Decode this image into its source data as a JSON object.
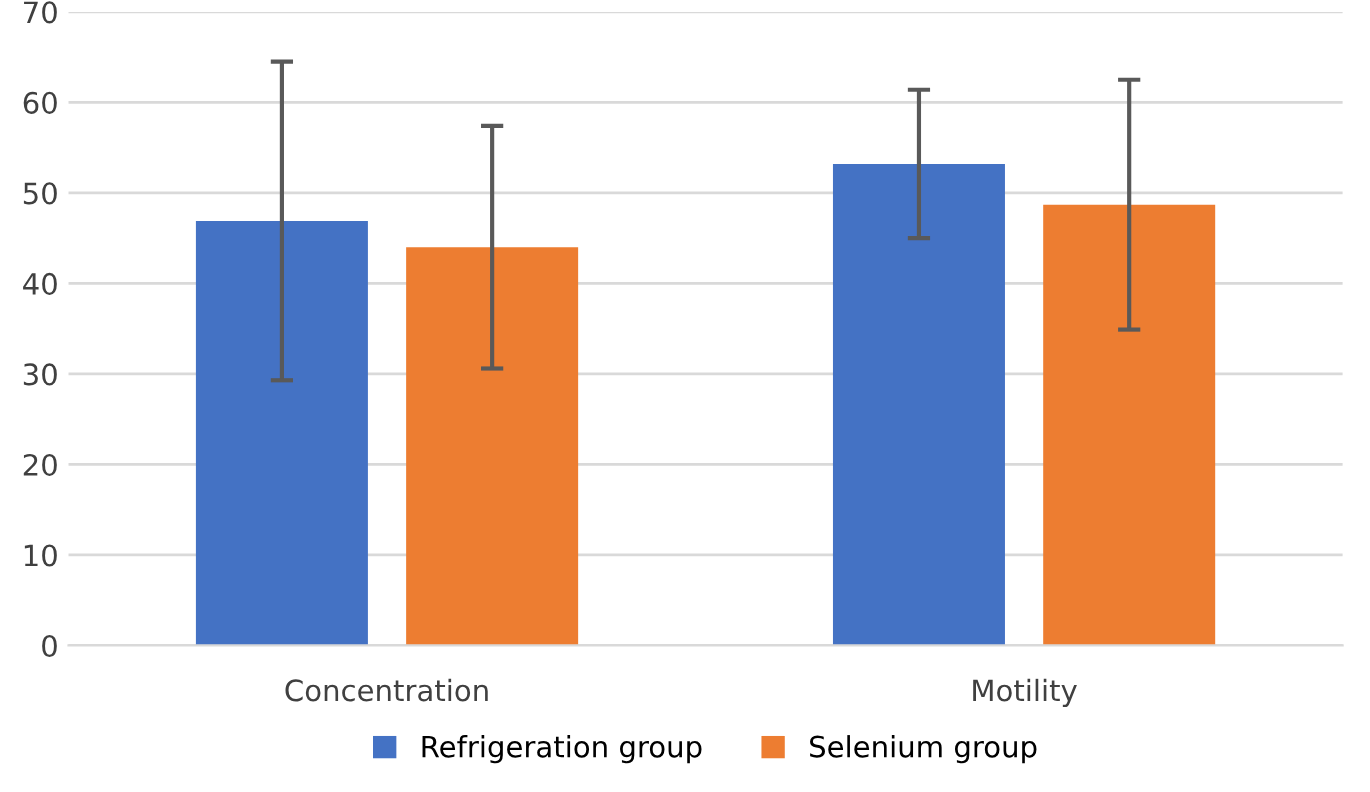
{
  "chart_data": {
    "type": "bar",
    "categories": [
      "Concentration",
      "Motility"
    ],
    "series": [
      {
        "name": "Refrigeration group",
        "color": "#4472c4",
        "values": [
          46.9,
          53.2
        ],
        "errors": [
          17.6,
          8.2
        ]
      },
      {
        "name": "Selenium group",
        "color": "#ed7d31",
        "values": [
          44.0,
          48.7
        ],
        "errors": [
          13.4,
          13.8
        ]
      }
    ],
    "ylim": [
      0,
      70
    ],
    "yticks": [
      0,
      10,
      20,
      30,
      40,
      50,
      60,
      70
    ],
    "grid": "y",
    "legend": "bottom"
  }
}
